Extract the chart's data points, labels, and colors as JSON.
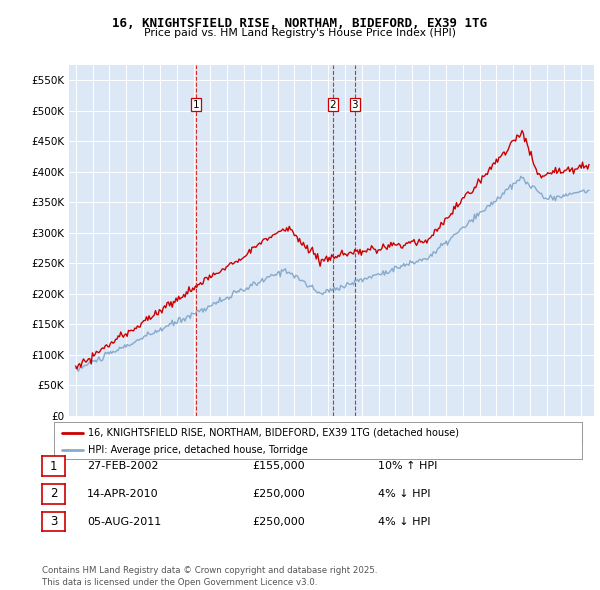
{
  "title1": "16, KNIGHTSFIELD RISE, NORTHAM, BIDEFORD, EX39 1TG",
  "title2": "Price paid vs. HM Land Registry's House Price Index (HPI)",
  "legend_line1": "16, KNIGHTSFIELD RISE, NORTHAM, BIDEFORD, EX39 1TG (detached house)",
  "legend_line2": "HPI: Average price, detached house, Torridge",
  "footnote": "Contains HM Land Registry data © Crown copyright and database right 2025.\nThis data is licensed under the Open Government Licence v3.0.",
  "transactions": [
    {
      "num": 1,
      "date": "27-FEB-2002",
      "price": "£155,000",
      "hpi": "10% ↑ HPI",
      "x": 2002.15
    },
    {
      "num": 2,
      "date": "14-APR-2010",
      "price": "£250,000",
      "hpi": "4% ↓ HPI",
      "x": 2010.29
    },
    {
      "num": 3,
      "date": "05-AUG-2011",
      "price": "£250,000",
      "hpi": "4% ↓ HPI",
      "x": 2011.59
    }
  ],
  "property_color": "#cc0000",
  "hpi_color": "#88aacc",
  "background_color": "#dce8f5",
  "grid_color": "#ffffff",
  "ylim": [
    0,
    575000
  ],
  "yticks": [
    0,
    50000,
    100000,
    150000,
    200000,
    250000,
    300000,
    350000,
    400000,
    450000,
    500000,
    550000
  ],
  "year_start": 1995,
  "year_end": 2025
}
